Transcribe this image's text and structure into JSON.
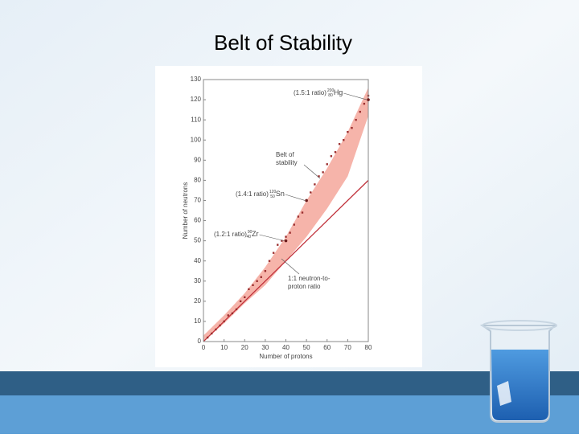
{
  "chart_data": {
    "type": "scatter",
    "title": "Belt of Stability",
    "x_label": "Number of protons",
    "y_label": "Number of neutrons",
    "xlim": [
      0,
      80
    ],
    "ylim": [
      0,
      130
    ],
    "xticks": [
      0,
      10,
      20,
      30,
      40,
      50,
      60,
      70,
      80
    ],
    "yticks": [
      0,
      10,
      20,
      30,
      40,
      50,
      60,
      70,
      80,
      90,
      100,
      110,
      120,
      130
    ],
    "band": {
      "color": "#f6b4aa",
      "x": [
        0,
        10,
        20,
        30,
        40,
        50,
        60,
        70,
        80
      ],
      "lower": [
        0,
        9,
        19,
        28,
        40,
        52,
        66,
        82,
        112
      ],
      "upper": [
        3,
        13,
        24,
        37,
        52,
        70,
        86,
        104,
        126
      ]
    },
    "reference_line": {
      "color": "#c0303a",
      "x": [
        0,
        80
      ],
      "y": [
        0,
        80
      ]
    },
    "nuclides": {
      "color": "#9c3030",
      "x": [
        2,
        4,
        6,
        8,
        10,
        12,
        14,
        16,
        18,
        20,
        22,
        24,
        26,
        28,
        30,
        32,
        34,
        36,
        38,
        40,
        42,
        44,
        46,
        48,
        50,
        52,
        54,
        56,
        58,
        60,
        62,
        64,
        66,
        68,
        70,
        72,
        74,
        76,
        78,
        80
      ],
      "y": [
        2,
        4,
        6,
        8,
        10,
        13,
        14,
        16,
        20,
        22,
        26,
        28,
        30,
        32,
        35,
        40,
        44,
        48,
        50,
        52,
        54,
        58,
        62,
        64,
        70,
        74,
        78,
        82,
        84,
        88,
        92,
        94,
        98,
        100,
        104,
        106,
        110,
        114,
        118,
        122
      ]
    },
    "isotopes": [
      {
        "ratio": "(1.5:1 ratio)",
        "mass": "200",
        "atomic": "80",
        "symbol": "Hg",
        "x": 80,
        "y": 120
      },
      {
        "ratio": "(1.4:1 ratio)",
        "mass": "120",
        "atomic": "50",
        "symbol": "Sn",
        "x": 50,
        "y": 70
      },
      {
        "ratio": "(1.2:1 ratio)",
        "mass": "90",
        "atomic": "40",
        "symbol": "Zr",
        "x": 40,
        "y": 50
      }
    ],
    "belt_label": [
      "Belt of",
      "stability"
    ],
    "line_label": [
      "1:1 neutron-to-",
      "proton ratio"
    ]
  }
}
